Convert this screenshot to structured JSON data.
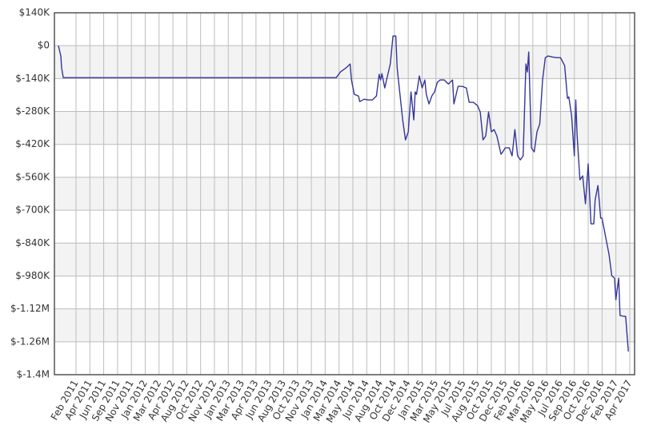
{
  "chart_data": {
    "type": "line",
    "grid": true,
    "ylim": [
      -1400000,
      140000
    ],
    "yticks": [
      {
        "value": 140000,
        "label": "$140K"
      },
      {
        "value": 0,
        "label": "$0"
      },
      {
        "value": -140000,
        "label": "$-140K"
      },
      {
        "value": -280000,
        "label": "$-280K"
      },
      {
        "value": -420000,
        "label": "$-420K"
      },
      {
        "value": -560000,
        "label": "$-560K"
      },
      {
        "value": -700000,
        "label": "$-700K"
      },
      {
        "value": -840000,
        "label": "$-840K"
      },
      {
        "value": -980000,
        "label": "$-980K"
      },
      {
        "value": -1120000,
        "label": "$-1.12M"
      },
      {
        "value": -1260000,
        "label": "$-1.26M"
      },
      {
        "value": -1400000,
        "label": "$-1.4M"
      }
    ],
    "xlim": [
      -1.56,
      40.35
    ],
    "xticks": [
      {
        "value": 0,
        "label": "Feb 2011"
      },
      {
        "value": 1,
        "label": "Apr 2011"
      },
      {
        "value": 2,
        "label": "Jun 2011"
      },
      {
        "value": 3,
        "label": "Sep 2011"
      },
      {
        "value": 4,
        "label": "Nov 2011"
      },
      {
        "value": 5,
        "label": "Jan 2012"
      },
      {
        "value": 6,
        "label": "Mar 2012"
      },
      {
        "value": 7,
        "label": "Apr 2012"
      },
      {
        "value": 8,
        "label": "Aug 2012"
      },
      {
        "value": 9,
        "label": "Oct 2012"
      },
      {
        "value": 10,
        "label": "Nov 2012"
      },
      {
        "value": 11,
        "label": "Jan 2013"
      },
      {
        "value": 12,
        "label": "Mar 2013"
      },
      {
        "value": 13,
        "label": "Apr 2013"
      },
      {
        "value": 14,
        "label": "Jun 2013"
      },
      {
        "value": 15,
        "label": "Aug 2013"
      },
      {
        "value": 16,
        "label": "Oct 2013"
      },
      {
        "value": 17,
        "label": "Nov 2013"
      },
      {
        "value": 18,
        "label": "Jan 2014"
      },
      {
        "value": 19,
        "label": "Mar 2014"
      },
      {
        "value": 20,
        "label": "May 2014"
      },
      {
        "value": 21,
        "label": "Jun 2014"
      },
      {
        "value": 22,
        "label": "Aug 2014"
      },
      {
        "value": 23,
        "label": "Oct 2014"
      },
      {
        "value": 24,
        "label": "Dec 2014"
      },
      {
        "value": 25,
        "label": "Jan 2015"
      },
      {
        "value": 26,
        "label": "Mar 2015"
      },
      {
        "value": 27,
        "label": "May 2015"
      },
      {
        "value": 28,
        "label": "Jul 2015"
      },
      {
        "value": 29,
        "label": "Aug 2015"
      },
      {
        "value": 30,
        "label": "Oct 2015"
      },
      {
        "value": 31,
        "label": "Dec 2015"
      },
      {
        "value": 32,
        "label": "Feb 2016"
      },
      {
        "value": 33,
        "label": "Mar 2016"
      },
      {
        "value": 34,
        "label": "May 2016"
      },
      {
        "value": 35,
        "label": "Jul 2016"
      },
      {
        "value": 36,
        "label": "Sep 2016"
      },
      {
        "value": 37,
        "label": "Oct 2016"
      },
      {
        "value": 38,
        "label": "Dec 2016"
      },
      {
        "value": 39,
        "label": "Feb 2017"
      },
      {
        "value": 40,
        "label": "Apr 2017"
      }
    ],
    "series": [
      {
        "color": "#35359a",
        "x": [
          -1.27,
          -1.1,
          -1.04,
          -0.92,
          18.8,
          19.1,
          19.5,
          19.8,
          19.9,
          20.1,
          20.4,
          20.5,
          20.8,
          21.1,
          21.4,
          21.7,
          21.9,
          22.0,
          22.1,
          22.3,
          22.5,
          22.7,
          22.9,
          23.1,
          23.2,
          23.4,
          23.6,
          23.8,
          24.0,
          24.2,
          24.4,
          24.5,
          24.6,
          24.8,
          25.0,
          25.2,
          25.3,
          25.5,
          25.7,
          25.9,
          26.1,
          26.3,
          26.6,
          26.9,
          27.2,
          27.3,
          27.6,
          27.9,
          28.2,
          28.4,
          28.7,
          29.0,
          29.2,
          29.4,
          29.6,
          29.8,
          30.0,
          30.2,
          30.4,
          30.7,
          30.9,
          31.0,
          31.3,
          31.5,
          31.7,
          31.9,
          32.1,
          32.3,
          32.5,
          32.6,
          32.7,
          32.9,
          33.1,
          33.3,
          33.5,
          33.7,
          33.9,
          34.1,
          34.4,
          34.7,
          35.0,
          35.3,
          35.5,
          35.6,
          35.8,
          36.0,
          36.1,
          36.2,
          36.4,
          36.6,
          36.8,
          37.0,
          37.2,
          37.4,
          37.5,
          37.7,
          37.9,
          38.0,
          38.3,
          38.5,
          38.7,
          38.9,
          39.0,
          39.2,
          39.3,
          39.6,
          39.7,
          39.9
        ],
        "values": [
          0,
          -44000,
          -95000,
          -136000,
          -136000,
          -112000,
          -95000,
          -78000,
          -146000,
          -207000,
          -214000,
          -238000,
          -228000,
          -231000,
          -231000,
          -214000,
          -122000,
          -146000,
          -119000,
          -180000,
          -129000,
          -78000,
          41000,
          41000,
          -95000,
          -207000,
          -316000,
          -401000,
          -367000,
          -197000,
          -316000,
          -197000,
          -207000,
          -129000,
          -180000,
          -146000,
          -207000,
          -248000,
          -214000,
          -197000,
          -156000,
          -146000,
          -146000,
          -163000,
          -146000,
          -248000,
          -173000,
          -173000,
          -180000,
          -241000,
          -241000,
          -255000,
          -282000,
          -401000,
          -384000,
          -282000,
          -367000,
          -357000,
          -384000,
          -462000,
          -445000,
          -435000,
          -435000,
          -469000,
          -357000,
          -469000,
          -486000,
          -469000,
          -78000,
          -112000,
          -27000,
          -435000,
          -452000,
          -367000,
          -333000,
          -146000,
          -51000,
          -44000,
          -48000,
          -51000,
          -51000,
          -85000,
          -224000,
          -218000,
          -299000,
          -469000,
          -231000,
          -384000,
          -571000,
          -554000,
          -673000,
          -503000,
          -758000,
          -758000,
          -656000,
          -595000,
          -734000,
          -734000,
          -826000,
          -887000,
          -979000,
          -989000,
          -1081000,
          -989000,
          -1148000,
          -1152000,
          -1152000,
          -1301000
        ]
      }
    ]
  }
}
